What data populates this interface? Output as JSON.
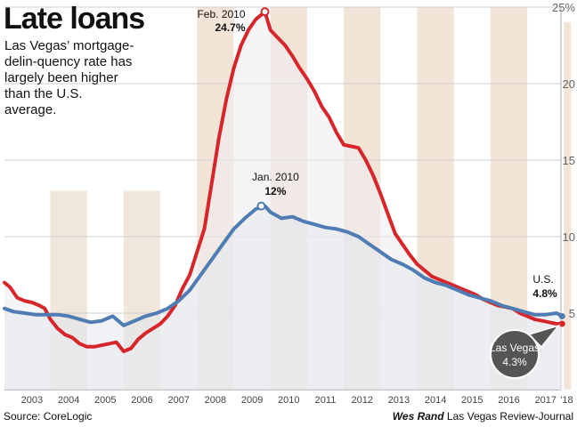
{
  "chart_data": {
    "type": "line",
    "title": "Late loans",
    "subtitle": "Las Vegas’ mortgage-delin-quency rate has largely been higher than the U.S. average.",
    "source": "Source: CoreLogic",
    "credit_name": "Wes Rand",
    "credit_org": "Las Vegas Review-Journal",
    "x_ticks": [
      "2003",
      "2004",
      "2005",
      "2006",
      "2007",
      "2008",
      "2009",
      "2010",
      "2011",
      "2012",
      "2013",
      "2014",
      "2015",
      "2016",
      "2017",
      "’18"
    ],
    "y_ticks": [
      "5",
      "10",
      "15",
      "20",
      "25%"
    ],
    "ylim": [
      0,
      25
    ],
    "xlim": [
      2002.75,
      2018.1
    ],
    "shaded_years": [
      2004,
      2006,
      2008,
      2010,
      2012,
      2014,
      2016
    ],
    "shaded_colors": {
      "early": "#f0e6dc",
      "late": "#f3e4d8"
    },
    "colors": {
      "las_vegas": "#d7262b",
      "us": "#4f7db3",
      "us_fill": "#e4e8ef",
      "lv_fill": "#ecedf0"
    },
    "series": [
      {
        "name": "Las Vegas",
        "x": [
          2002.75,
          2002.9,
          2003.1,
          2003.3,
          2003.5,
          2003.7,
          2003.85,
          2004.0,
          2004.2,
          2004.4,
          2004.6,
          2004.8,
          2005.0,
          2005.2,
          2005.4,
          2005.6,
          2005.8,
          2006.0,
          2006.2,
          2006.4,
          2006.6,
          2006.8,
          2007.0,
          2007.2,
          2007.4,
          2007.6,
          2007.8,
          2008.0,
          2008.2,
          2008.4,
          2008.6,
          2008.8,
          2009.0,
          2009.2,
          2009.4,
          2009.6,
          2009.75,
          2009.85,
          2010.0,
          2010.2,
          2010.4,
          2010.6,
          2010.8,
          2011.0,
          2011.2,
          2011.4,
          2011.6,
          2011.8,
          2012.0,
          2012.2,
          2012.4,
          2012.6,
          2012.8,
          2013.0,
          2013.2,
          2013.4,
          2013.6,
          2013.8,
          2014.0,
          2014.2,
          2014.4,
          2014.6,
          2014.8,
          2015.0,
          2015.2,
          2015.4,
          2015.6,
          2015.8,
          2016.0,
          2016.2,
          2016.4,
          2016.6,
          2016.8,
          2017.0,
          2017.2,
          2017.4,
          2017.6,
          2017.8,
          2017.95
        ],
        "values": [
          7.0,
          6.7,
          6.0,
          5.8,
          5.7,
          5.5,
          5.3,
          4.6,
          4.0,
          3.6,
          3.4,
          3.0,
          2.8,
          2.8,
          2.9,
          3.0,
          3.1,
          2.5,
          2.7,
          3.3,
          3.7,
          4.0,
          4.3,
          4.8,
          5.5,
          6.6,
          7.5,
          9.0,
          10.5,
          13.5,
          16.5,
          19.0,
          21.0,
          22.5,
          23.5,
          24.2,
          24.5,
          24.7,
          23.5,
          23.0,
          22.5,
          21.8,
          21.0,
          20.3,
          19.5,
          18.5,
          17.8,
          16.8,
          16.0,
          15.9,
          15.8,
          15.0,
          14.0,
          12.8,
          11.5,
          10.2,
          9.5,
          8.8,
          8.2,
          7.8,
          7.4,
          7.2,
          7.0,
          6.8,
          6.6,
          6.4,
          6.2,
          5.9,
          5.7,
          5.5,
          5.4,
          5.3,
          5.0,
          4.8,
          4.6,
          4.5,
          4.4,
          4.3,
          4.3
        ]
      },
      {
        "name": "U.S.",
        "x": [
          2002.75,
          2003.0,
          2003.3,
          2003.6,
          2003.9,
          2004.2,
          2004.5,
          2004.8,
          2005.1,
          2005.4,
          2005.7,
          2006.0,
          2006.3,
          2006.6,
          2006.9,
          2007.2,
          2007.5,
          2007.8,
          2008.1,
          2008.4,
          2008.7,
          2009.0,
          2009.3,
          2009.6,
          2009.85,
          2010.0,
          2010.3,
          2010.6,
          2010.9,
          2011.2,
          2011.5,
          2011.8,
          2012.1,
          2012.4,
          2012.7,
          2013.0,
          2013.3,
          2013.6,
          2013.9,
          2014.2,
          2014.5,
          2014.8,
          2015.1,
          2015.4,
          2015.7,
          2016.0,
          2016.3,
          2016.6,
          2016.9,
          2017.2,
          2017.5,
          2017.8,
          2017.95
        ],
        "values": [
          5.3,
          5.1,
          5.0,
          4.9,
          4.9,
          4.9,
          4.8,
          4.6,
          4.4,
          4.5,
          4.8,
          4.2,
          4.5,
          4.8,
          5.0,
          5.3,
          5.8,
          6.5,
          7.5,
          8.5,
          9.5,
          10.5,
          11.2,
          11.8,
          12.0,
          11.6,
          11.2,
          11.3,
          11.0,
          10.8,
          10.6,
          10.5,
          10.3,
          10.0,
          9.5,
          9.0,
          8.5,
          8.2,
          7.8,
          7.3,
          7.0,
          6.8,
          6.5,
          6.2,
          6.0,
          5.8,
          5.5,
          5.3,
          5.1,
          4.9,
          4.9,
          5.0,
          4.8
        ]
      }
    ],
    "annotations": [
      {
        "series": "Las Vegas",
        "x": 2009.85,
        "y": 24.7,
        "date": "Feb. 2010",
        "value": "24.7%"
      },
      {
        "series": "U.S.",
        "x": 2009.75,
        "y": 12.0,
        "date": "Jan. 2010",
        "value": "12%"
      },
      {
        "series": "U.S.",
        "x": 2017.95,
        "y": 4.8,
        "date": "U.S.",
        "value": "4.8%"
      },
      {
        "series": "Las Vegas",
        "x": 2017.95,
        "y": 4.3,
        "date": "Las Vegas",
        "value": "4.3%"
      }
    ]
  }
}
